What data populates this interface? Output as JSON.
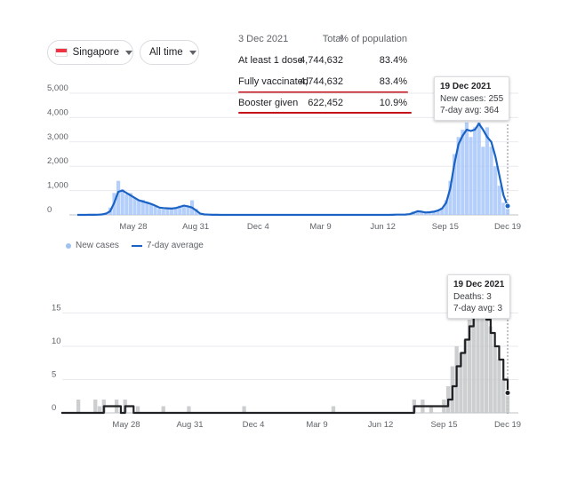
{
  "controls": {
    "location": "Singapore",
    "time_range": "All time"
  },
  "vaccination": {
    "date": "3 Dec 2021",
    "total_header": "Total",
    "percent_header": "% of population",
    "rows": [
      {
        "label": "At least 1 dose",
        "total": "4,744,632",
        "percent": "83.4%"
      },
      {
        "label": "Fully vaccinated",
        "total": "4,744,632",
        "percent": "83.4%"
      },
      {
        "label": "Booster given",
        "total": "622,452",
        "percent": "10.9%"
      }
    ]
  },
  "cases_tooltip": {
    "date": "19 Dec 2021",
    "line1": "New cases: 255",
    "line2": "7-day avg: 364"
  },
  "deaths_tooltip": {
    "date": "19 Dec 2021",
    "line1": "Deaths: 3",
    "line2": "7-day avg: 3"
  },
  "legend": {
    "new_cases": "New cases",
    "avg": "7-day average"
  },
  "colors": {
    "bar_blue": "#a8c7fa",
    "line_blue": "#1a62c4",
    "bar_gray": "#c3c5c8",
    "line_black": "#202124",
    "highlight_red": "#c5111a"
  },
  "chart_data": [
    {
      "type": "area",
      "series": [
        {
          "name": "New cases",
          "values": [
            0,
            0,
            0,
            0,
            0,
            10,
            40,
            90,
            300,
            900,
            1400,
            1050,
            850,
            900,
            700,
            600,
            620,
            550,
            450,
            350,
            250,
            230,
            300,
            250,
            320,
            380,
            400,
            350,
            600,
            250,
            50,
            10,
            5,
            0,
            0,
            0,
            0,
            0,
            0,
            0,
            0,
            0,
            0,
            0,
            0,
            0,
            0,
            0,
            0,
            0,
            0,
            0,
            0,
            0,
            0,
            0,
            0,
            0,
            0,
            0,
            0,
            0,
            0,
            0,
            0,
            0,
            0,
            0,
            0,
            0,
            0,
            0,
            0,
            0,
            0,
            0,
            0,
            10,
            10,
            10,
            10,
            20,
            150,
            160,
            100,
            80,
            100,
            150,
            200,
            300,
            600,
            1400,
            2500,
            3200,
            3500,
            3800,
            3200,
            3600,
            3800,
            2800,
            3600,
            2800,
            2000,
            1200,
            500,
            255
          ]
        },
        {
          "name": "7-day average",
          "values": [
            0,
            0,
            0,
            3,
            5,
            8,
            20,
            50,
            150,
            500,
            950,
            1000,
            900,
            800,
            700,
            600,
            550,
            500,
            450,
            380,
            300,
            280,
            270,
            260,
            280,
            330,
            380,
            350,
            300,
            180,
            50,
            20,
            10,
            5,
            2,
            0,
            0,
            0,
            0,
            0,
            0,
            0,
            0,
            0,
            0,
            0,
            0,
            0,
            0,
            0,
            0,
            0,
            0,
            0,
            0,
            0,
            0,
            0,
            0,
            0,
            0,
            0,
            0,
            0,
            0,
            0,
            0,
            0,
            0,
            0,
            0,
            0,
            0,
            0,
            0,
            0,
            0,
            5,
            10,
            12,
            15,
            30,
            80,
            150,
            130,
            100,
            110,
            130,
            180,
            260,
            500,
            1100,
            2100,
            2900,
            3250,
            3500,
            3450,
            3500,
            3750,
            3500,
            3200,
            3000,
            2400,
            1600,
            800,
            364
          ]
        }
      ],
      "x_ticks": [
        "May 28",
        "Aug 31",
        "Dec 4",
        "Mar 9",
        "Jun 12",
        "Sep 15",
        "Dec 19"
      ],
      "y_ticks": [
        "0",
        "1,000",
        "2,000",
        "3,000",
        "4,000",
        "5,000"
      ],
      "ylim": [
        0,
        5000
      ],
      "grid": true
    },
    {
      "type": "area",
      "series": [
        {
          "name": "Deaths",
          "values": [
            0,
            0,
            0,
            0,
            2,
            0,
            0,
            0,
            2,
            1,
            2,
            0,
            0,
            2,
            0,
            2,
            0,
            0,
            1,
            0,
            0,
            0,
            0,
            0,
            1,
            0,
            0,
            0,
            0,
            0,
            1,
            0,
            0,
            0,
            0,
            0,
            0,
            0,
            0,
            0,
            0,
            0,
            0,
            1,
            0,
            0,
            0,
            0,
            0,
            0,
            0,
            0,
            0,
            0,
            0,
            0,
            0,
            0,
            0,
            0,
            0,
            0,
            0,
            0,
            1,
            0,
            0,
            0,
            0,
            0,
            0,
            0,
            0,
            0,
            0,
            0,
            0,
            0,
            0,
            0,
            0,
            0,
            0,
            2,
            0,
            2,
            0,
            1,
            0,
            0,
            2,
            4,
            7,
            10,
            9,
            11,
            14,
            18,
            15,
            18,
            16,
            13,
            10,
            8,
            5,
            3
          ]
        },
        {
          "name": "7-day average",
          "values": [
            0,
            0,
            0,
            0,
            0,
            0,
            0,
            0,
            0,
            0,
            1,
            1,
            1,
            1,
            0,
            1,
            1,
            0,
            0,
            0,
            0,
            0,
            0,
            0,
            0,
            0,
            0,
            0,
            0,
            0,
            0,
            0,
            0,
            0,
            0,
            0,
            0,
            0,
            0,
            0,
            0,
            0,
            0,
            0,
            0,
            0,
            0,
            0,
            0,
            0,
            0,
            0,
            0,
            0,
            0,
            0,
            0,
            0,
            0,
            0,
            0,
            0,
            0,
            0,
            0,
            0,
            0,
            0,
            0,
            0,
            0,
            0,
            0,
            0,
            0,
            0,
            0,
            0,
            0,
            0,
            0,
            0,
            0,
            1,
            1,
            1,
            1,
            1,
            1,
            1,
            1,
            2,
            4,
            7,
            9,
            11,
            13,
            15,
            16,
            15,
            14,
            12,
            10,
            8,
            5,
            3
          ]
        }
      ],
      "x_ticks": [
        "May 28",
        "Aug 31",
        "Dec 4",
        "Mar 9",
        "Jun 12",
        "Sep 15",
        "Dec 19"
      ],
      "y_ticks": [
        "0",
        "5",
        "10",
        "15"
      ],
      "ylim": [
        0,
        18
      ],
      "grid": true
    }
  ]
}
